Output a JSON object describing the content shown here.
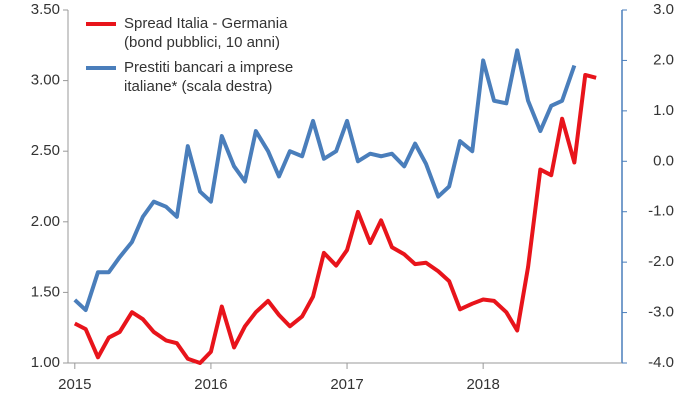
{
  "chart_data": {
    "type": "line",
    "x": [
      2015.0,
      2015.08,
      2015.17,
      2015.25,
      2015.33,
      2015.42,
      2015.5,
      2015.58,
      2015.67,
      2015.75,
      2015.83,
      2015.92,
      2016.0,
      2016.08,
      2016.17,
      2016.25,
      2016.33,
      2016.42,
      2016.5,
      2016.58,
      2016.67,
      2016.75,
      2016.83,
      2016.92,
      2017.0,
      2017.08,
      2017.17,
      2017.25,
      2017.33,
      2017.42,
      2017.5,
      2017.58,
      2017.67,
      2017.75,
      2017.83,
      2017.92,
      2018.0,
      2018.08,
      2018.17,
      2018.25,
      2018.33,
      2018.42,
      2018.5,
      2018.58,
      2018.67,
      2018.75,
      2018.83
    ],
    "series": [
      {
        "name": "Spread Italia - Germania (bond pubblici, 10 anni)",
        "color": "#e8141b",
        "axis": "y",
        "values": [
          1.28,
          1.24,
          1.04,
          1.18,
          1.22,
          1.36,
          1.31,
          1.22,
          1.16,
          1.14,
          1.03,
          1.0,
          1.08,
          1.4,
          1.11,
          1.26,
          1.36,
          1.44,
          1.34,
          1.26,
          1.33,
          1.47,
          1.78,
          1.69,
          1.8,
          2.07,
          1.85,
          2.01,
          1.82,
          1.77,
          1.7,
          1.71,
          1.65,
          1.58,
          1.38,
          1.42,
          1.45,
          1.44,
          1.36,
          1.23,
          1.68,
          2.37,
          2.33,
          2.73,
          2.42,
          3.04,
          3.02
        ]
      },
      {
        "name": "Prestiti bancari a imprese italiane* (scala destra)",
        "color": "#4a7ebb",
        "axis": "y2",
        "values": [
          -2.75,
          -2.95,
          -2.2,
          -2.2,
          -1.9,
          -1.6,
          -1.1,
          -0.8,
          -0.9,
          -1.1,
          0.3,
          -0.6,
          -0.8,
          0.5,
          -0.1,
          -0.4,
          0.6,
          0.2,
          -0.3,
          0.2,
          0.1,
          0.8,
          0.05,
          0.2,
          0.8,
          0.0,
          0.15,
          0.1,
          0.15,
          -0.1,
          0.35,
          -0.05,
          -0.7,
          -0.5,
          0.4,
          0.2,
          2.0,
          1.2,
          1.15,
          2.2,
          1.2,
          0.6,
          1.1,
          1.2,
          1.9,
          null,
          null
        ]
      }
    ],
    "xlim": [
      2014.95,
      2019.02
    ],
    "xticks": [
      2015,
      2016,
      2017,
      2018
    ],
    "ylim": [
      1,
      3.5
    ],
    "yticks": [
      {
        "value": 1,
        "label": "1.00"
      },
      {
        "value": 1.5,
        "label": "1.50"
      },
      {
        "value": 2,
        "label": "2.00"
      },
      {
        "value": 2.5,
        "label": "2.50"
      },
      {
        "value": 3,
        "label": "3.00"
      },
      {
        "value": 3.5,
        "label": "3.50"
      }
    ],
    "y2lim": [
      -4,
      3
    ],
    "y2ticks": [
      {
        "value": -4,
        "label": "-4.0"
      },
      {
        "value": -3,
        "label": "-3.0"
      },
      {
        "value": -2,
        "label": "-2.0"
      },
      {
        "value": -1,
        "label": "-1.0"
      },
      {
        "value": 0,
        "label": "0.0"
      },
      {
        "value": 1,
        "label": "1.0"
      },
      {
        "value": 2,
        "label": "2.0"
      },
      {
        "value": 3,
        "label": "3.0"
      }
    ],
    "legend": "upper-left"
  }
}
